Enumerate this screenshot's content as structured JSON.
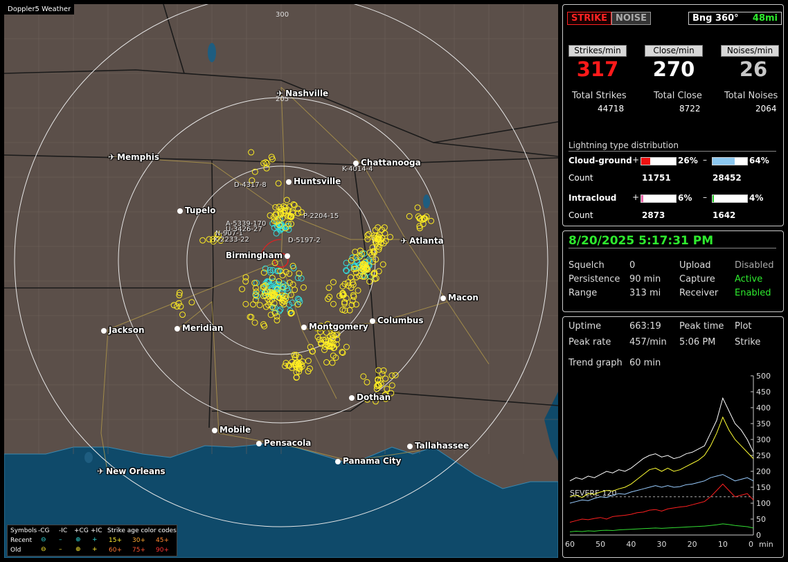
{
  "app_title": "Doppler5 Weather",
  "map": {
    "range_labels": [
      "300",
      "205"
    ],
    "cities": [
      {
        "name": "Nashville",
        "type": "airport"
      },
      {
        "name": "Memphis",
        "type": "airport"
      },
      {
        "name": "Chattanooga",
        "type": "city"
      },
      {
        "name": "Huntsville",
        "type": "city"
      },
      {
        "name": "Tupelo",
        "type": "city"
      },
      {
        "name": "Atlanta",
        "type": "airport"
      },
      {
        "name": "Birmingham",
        "type": "city"
      },
      {
        "name": "Macon",
        "type": "city"
      },
      {
        "name": "Jackson",
        "type": "city"
      },
      {
        "name": "Meridian",
        "type": "city"
      },
      {
        "name": "Montgomery",
        "type": "city"
      },
      {
        "name": "Columbus",
        "type": "city"
      },
      {
        "name": "Dothan",
        "type": "city"
      },
      {
        "name": "Mobile",
        "type": "city"
      },
      {
        "name": "Pensacola",
        "type": "city"
      },
      {
        "name": "Tallahassee",
        "type": "city"
      },
      {
        "name": "Panama City",
        "type": "city"
      },
      {
        "name": "New Orleans",
        "type": "airport"
      }
    ],
    "storm_tags": [
      "K-4014-4",
      "D-4317-8",
      "P-2204-15",
      "A-5339-170",
      "N-907-1",
      "K-2233-22",
      "D-5197-2",
      "U-3426-27"
    ]
  },
  "legend": {
    "row1": [
      "Symbols",
      "-CG",
      "-IC",
      "+CG",
      "+IC",
      "Strike age color codes"
    ],
    "row2": [
      "Recent",
      "15+",
      "30+",
      "45+"
    ],
    "row3": [
      "Old",
      "60+",
      "75+",
      "90+"
    ]
  },
  "panel1": {
    "strike_btn": "STRIKE",
    "noise_btn": "NOISE",
    "bearing": "Bng 360°",
    "distance": "48mi",
    "headers": [
      "Strikes/min",
      "Close/min",
      "Noises/min"
    ],
    "rates": [
      "317",
      "270",
      "26"
    ],
    "total_labels": [
      "Total Strikes",
      "Total Close",
      "Total Noises"
    ],
    "totals": [
      "44718",
      "8722",
      "2064"
    ],
    "dist_title": "Lightning type distribution",
    "cg_label": "Cloud-ground",
    "cg_pos_pct": "26%",
    "cg_neg_pct": "64%",
    "count_label": "Count",
    "cg_pos_count": "11751",
    "cg_neg_count": "28452",
    "ic_label": "Intracloud",
    "ic_pos_pct": "6%",
    "ic_neg_pct": "4%",
    "ic_pos_count": "2873",
    "ic_neg_count": "1642",
    "plus": "+",
    "minus": "–",
    "bar_fractions": {
      "cg_pos": 0.26,
      "cg_neg": 0.64,
      "ic_pos": 0.06,
      "ic_neg": 0.04
    }
  },
  "panel2": {
    "datetime": "8/20/2025 5:17:31 PM",
    "squelch_label": "Squelch",
    "squelch": "0",
    "persistence_label": "Persistence",
    "persistence": "90 min",
    "range_label": "Range",
    "range": "313 mi",
    "upload_label": "Upload",
    "upload": "Disabled",
    "capture_label": "Capture",
    "capture": "Active",
    "receiver_label": "Receiver",
    "receiver": "Enabled"
  },
  "panel3": {
    "uptime_label": "Uptime",
    "uptime": "663:19",
    "peak_time_label": "Peak time",
    "peak_time": "5:06 PM",
    "plot_label": "Plot",
    "plot": "Strike",
    "peak_rate_label": "Peak rate",
    "peak_rate": "457/min",
    "trend_label": "Trend graph",
    "trend": "60 min",
    "severe_label": "SEVERE 120"
  },
  "chart_data": {
    "type": "line",
    "x": [
      60,
      58,
      56,
      54,
      52,
      50,
      48,
      46,
      44,
      42,
      40,
      38,
      36,
      34,
      32,
      30,
      28,
      26,
      24,
      22,
      20,
      18,
      16,
      14,
      12,
      10,
      8,
      6,
      4,
      2,
      0
    ],
    "xlabel": "min",
    "x_ticks": [
      "60",
      "50",
      "40",
      "30",
      "20",
      "10",
      "0"
    ],
    "y_ticks": [
      "500",
      "450",
      "400",
      "350",
      "300",
      "250",
      "200",
      "150",
      "100",
      "50",
      "0"
    ],
    "ylim": [
      0,
      500
    ],
    "severe_threshold": 120,
    "series": [
      {
        "color": "#ffffff",
        "values": [
          170,
          180,
          175,
          185,
          180,
          190,
          200,
          195,
          205,
          200,
          210,
          225,
          240,
          250,
          255,
          245,
          250,
          240,
          245,
          255,
          260,
          270,
          280,
          320,
          360,
          430,
          390,
          350,
          330,
          300,
          260
        ]
      },
      {
        "color": "#ffff33",
        "values": [
          120,
          125,
          118,
          130,
          128,
          135,
          140,
          138,
          145,
          150,
          160,
          175,
          190,
          205,
          210,
          200,
          210,
          200,
          205,
          215,
          225,
          235,
          250,
          280,
          320,
          370,
          330,
          300,
          280,
          260,
          240
        ]
      },
      {
        "color": "#99ccff",
        "values": [
          100,
          105,
          110,
          108,
          115,
          120,
          118,
          125,
          130,
          128,
          135,
          140,
          145,
          150,
          155,
          150,
          155,
          150,
          152,
          158,
          160,
          165,
          170,
          180,
          185,
          190,
          180,
          170,
          175,
          180,
          170
        ]
      },
      {
        "color": "#ff2020",
        "values": [
          40,
          45,
          50,
          48,
          52,
          55,
          50,
          58,
          60,
          62,
          65,
          70,
          72,
          78,
          80,
          75,
          82,
          85,
          88,
          90,
          95,
          100,
          105,
          120,
          140,
          160,
          140,
          120,
          125,
          130,
          110
        ]
      },
      {
        "color": "#33dd33",
        "values": [
          10,
          12,
          11,
          13,
          12,
          14,
          15,
          14,
          16,
          17,
          18,
          19,
          20,
          21,
          22,
          21,
          22,
          23,
          24,
          25,
          26,
          27,
          28,
          30,
          32,
          35,
          33,
          30,
          28,
          26,
          22
        ]
      }
    ]
  },
  "colors": {
    "strike": "#ff1a1a",
    "rate_close": "#ffffff",
    "rate_noise": "#c8c8c8",
    "accent_green": "#2eea2e",
    "cg_pos": "#ee1111",
    "cg_neg": "#8cc8f0",
    "ic_pos": "#ee66aa",
    "ic_neg": "#22cc22"
  }
}
